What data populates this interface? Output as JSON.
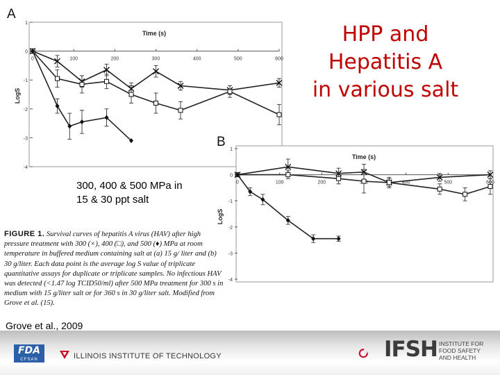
{
  "slide": {
    "title_lines": [
      "HPP and",
      "Hepatitis A",
      "in various salt"
    ],
    "note_lines": [
      "300, 400 & 500 MPa in",
      "15 & 30 ppt salt"
    ],
    "citation": "Grove et al., 2009"
  },
  "caption": {
    "label": "FIGURE 1.",
    "text": "Survival curves of hepatitis A virus (HAV) after high pressure treatment with 300 (×), 400 (□), and 500 (♦) MPa at room temperature in buffered medium containing salt at (a) 15 g/ liter and (b) 30 g/liter. Each data point is the average log S value of triplicate quantitative assays for duplicate or triplicate samples. No infectious HAV was detected (<1.47 log TCID50/ml) after 500 MPa treatment for 300 s in medium with 15 g/liter salt or for 360 s in 30 g/liter salt. Modified from Grove et al. (15)."
  },
  "footer": {
    "fda": "FDA",
    "fda_sub": "CFSAN",
    "iit": "ILLINOIS INSTITUTE OF TECHNOLOGY",
    "ifsh": "IFSH",
    "ifsh_lines": [
      "INSTITUTE FOR",
      "FOOD SAFETY",
      "AND HEALTH"
    ]
  },
  "chart_data": [
    {
      "type": "line",
      "panel_label": "A",
      "xlabel": "Time (s)",
      "ylabel": "LogS",
      "xlim": [
        0,
        600
      ],
      "ylim": [
        -4,
        1
      ],
      "xticks": [
        0,
        100,
        200,
        300,
        400,
        500,
        600
      ],
      "yticks": [
        1,
        0,
        -1,
        -2,
        -3,
        -4
      ],
      "series": [
        {
          "marker": "x",
          "x": [
            0,
            60,
            120,
            180,
            240,
            300,
            360,
            480,
            600
          ],
          "y": [
            0,
            -0.35,
            -1.05,
            -0.65,
            -1.3,
            -0.7,
            -1.2,
            -1.35,
            -1.1
          ],
          "err": [
            0.08,
            0.2,
            0.2,
            0.2,
            0.2,
            0.2,
            0.15,
            0.15,
            0.15
          ]
        },
        {
          "marker": "square",
          "x": [
            0,
            60,
            120,
            180,
            240,
            300,
            360,
            480,
            600
          ],
          "y": [
            0,
            -0.95,
            -1.15,
            -1.05,
            -1.5,
            -1.8,
            -2.05,
            -1.4,
            -2.2
          ],
          "err": [
            0.08,
            0.3,
            0.3,
            0.25,
            0.3,
            0.35,
            0.3,
            0.2,
            0.35
          ]
        },
        {
          "marker": "diamond",
          "x": [
            0,
            60,
            90,
            120,
            180,
            240
          ],
          "y": [
            0,
            -1.9,
            -2.6,
            -2.45,
            -2.3,
            -3.1
          ],
          "err": [
            0.08,
            0.25,
            0.45,
            0.4,
            0.3,
            0
          ]
        }
      ]
    },
    {
      "type": "line",
      "panel_label": "B",
      "xlabel": "Time (s)",
      "ylabel": "LogS",
      "xlim": [
        0,
        600
      ],
      "ylim": [
        -4,
        1
      ],
      "xticks": [
        0,
        100,
        200,
        300,
        400,
        500,
        600
      ],
      "yticks": [
        1,
        0,
        -1,
        -2,
        -3,
        -4
      ],
      "series": [
        {
          "marker": "x",
          "x": [
            0,
            120,
            240,
            300,
            360,
            480,
            600
          ],
          "y": [
            0,
            0.3,
            0.05,
            0.1,
            -0.3,
            -0.1,
            0
          ],
          "err": [
            0.05,
            0.3,
            0.2,
            0.3,
            0.15,
            0.15,
            0.15
          ]
        },
        {
          "marker": "square",
          "x": [
            0,
            120,
            240,
            300,
            360,
            480,
            540,
            600
          ],
          "y": [
            0,
            0,
            -0.15,
            -0.25,
            -0.3,
            -0.55,
            -0.75,
            -0.45
          ],
          "err": [
            0.05,
            0.15,
            0.2,
            0.45,
            0.2,
            0.2,
            0.25,
            0.3
          ]
        },
        {
          "marker": "diamond",
          "x": [
            0,
            30,
            60,
            120,
            180,
            240
          ],
          "y": [
            0,
            -0.65,
            -0.95,
            -1.75,
            -2.45,
            -2.45
          ],
          "err": [
            0.05,
            0.15,
            0.2,
            0.15,
            0.15,
            0.1
          ]
        }
      ]
    }
  ]
}
